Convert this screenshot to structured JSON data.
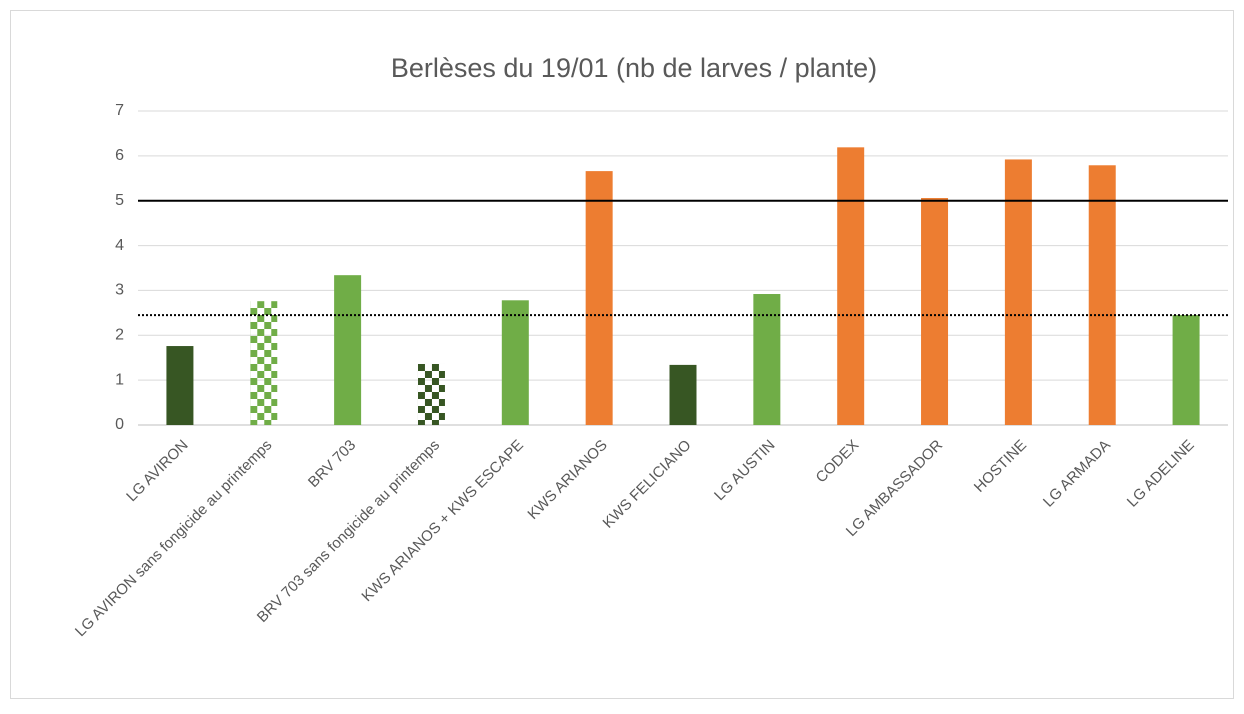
{
  "chart_data": {
    "type": "bar",
    "title": "Berlèses du 19/01 (nb de larves / plante)",
    "categories": [
      "LG AVIRON",
      "LG AVIRON sans fongicide au printemps",
      "BRV 703",
      "BRV 703 sans fongicide au printemps",
      "KWS ARIANOS + KWS ESCAPE",
      "KWS ARIANOS",
      "KWS FELICIANO",
      "LG AUSTIN",
      "CODEX",
      "LG AMBASSADOR",
      "HOSTINE",
      "LG ARMADA",
      "LG ADELINE"
    ],
    "values": [
      1.76,
      2.76,
      3.34,
      1.36,
      2.78,
      5.66,
      1.34,
      2.92,
      6.19,
      5.06,
      5.92,
      5.79,
      2.45
    ],
    "colors": [
      "#375623",
      "#70ad47",
      "#70ad47",
      "#375623",
      "#70ad47",
      "#ed7d31",
      "#375623",
      "#70ad47",
      "#ed7d31",
      "#ed7d31",
      "#ed7d31",
      "#ed7d31",
      "#70ad47"
    ],
    "bar_styles": [
      "solid",
      "checker",
      "solid",
      "checker",
      "solid",
      "solid",
      "solid",
      "solid",
      "solid",
      "solid",
      "solid",
      "solid",
      "solid"
    ],
    "ylim": [
      0,
      7
    ],
    "yticks": [
      0,
      1,
      2,
      3,
      4,
      5,
      6,
      7
    ],
    "grid": true,
    "reference_lines": [
      {
        "value": 5,
        "style": "solid"
      },
      {
        "value": 2.45,
        "style": "dotted"
      }
    ]
  }
}
